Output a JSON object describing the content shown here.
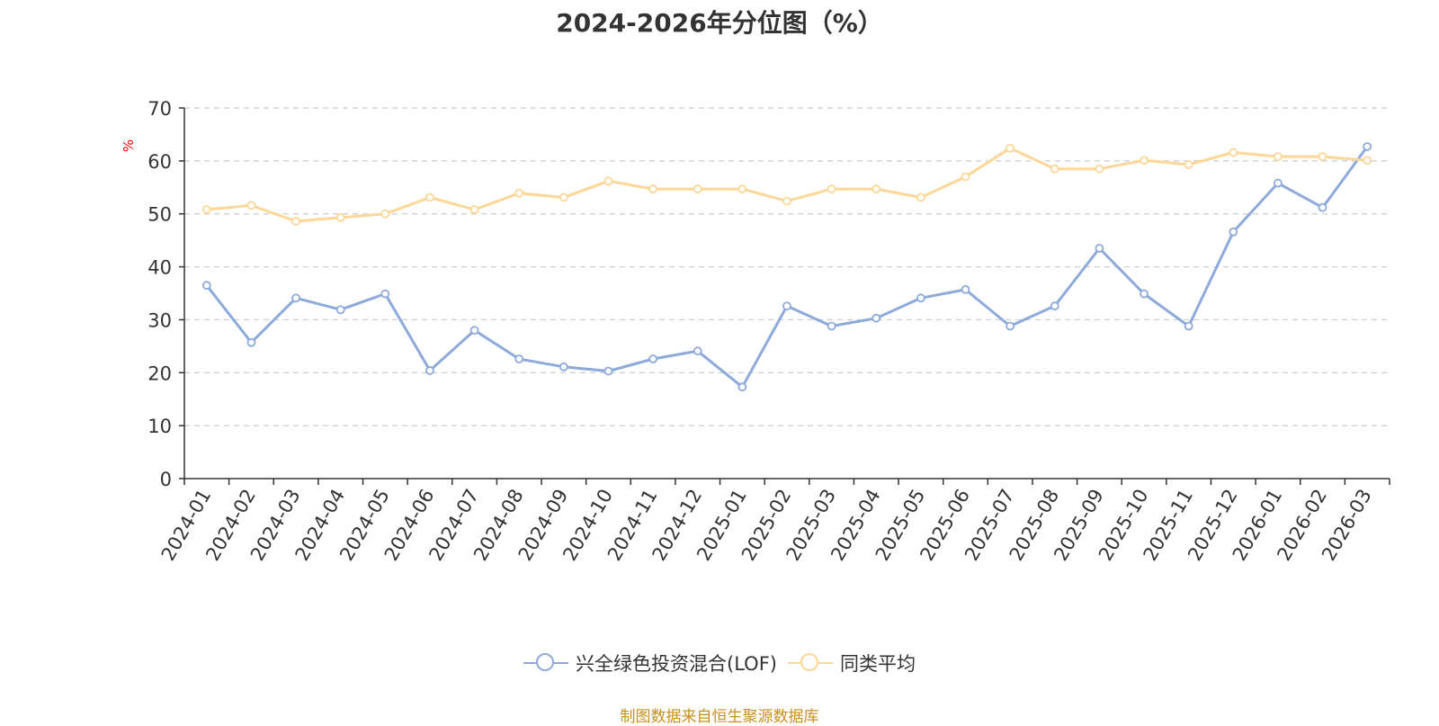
{
  "title": "2024-2026年分位图（%）",
  "source_note": "制图数据来自恒生聚源数据库",
  "colors": {
    "series1": "#8eaadb",
    "series2": "#fdd797",
    "grid": "#cccccc",
    "axis": "#333333",
    "unit_label": "#ff0000",
    "text": "#333333",
    "source_note": "#c8901c"
  },
  "chart_data": {
    "type": "line",
    "title": "2024-2026年分位图（%）",
    "ylabel": "%",
    "xlabel": "",
    "ylim": [
      0,
      70
    ],
    "yticks": [
      0,
      10,
      20,
      30,
      40,
      50,
      60,
      70
    ],
    "grid": true,
    "legend_position": "bottom-center",
    "categories": [
      "2024-01",
      "2024-02",
      "2024-03",
      "2024-04",
      "2024-05",
      "2024-06",
      "2024-07",
      "2024-08",
      "2024-09",
      "2024-10",
      "2024-11",
      "2024-12",
      "2025-01",
      "2025-02",
      "2025-03",
      "2025-04",
      "2025-05",
      "2025-06",
      "2025-07",
      "2025-08",
      "2025-09",
      "2025-10",
      "2025-11",
      "2025-12",
      "2026-01",
      "2026-02",
      "2026-03"
    ],
    "series": [
      {
        "name": "兴全绿色投资混合(LOF)",
        "color": "#8eaadb",
        "values": [
          36.5,
          25.7,
          34.1,
          31.9,
          34.9,
          20.4,
          28,
          22.6,
          21.1,
          20.3,
          22.6,
          24.1,
          17.3,
          32.6,
          28.8,
          30.3,
          34.1,
          35.7,
          28.8,
          32.6,
          43.5,
          34.9,
          28.8,
          46.6,
          55.8,
          51.2,
          62.7
        ]
      },
      {
        "name": "同类平均",
        "color": "#fdd797",
        "values": [
          50.8,
          51.6,
          48.6,
          49.3,
          50,
          53.1,
          50.8,
          53.9,
          53.1,
          56.2,
          54.7,
          54.7,
          54.7,
          52.4,
          54.7,
          54.7,
          53.1,
          57,
          62.4,
          58.5,
          58.5,
          60.1,
          59.3,
          61.6,
          60.8,
          60.8,
          60.1
        ]
      }
    ]
  }
}
